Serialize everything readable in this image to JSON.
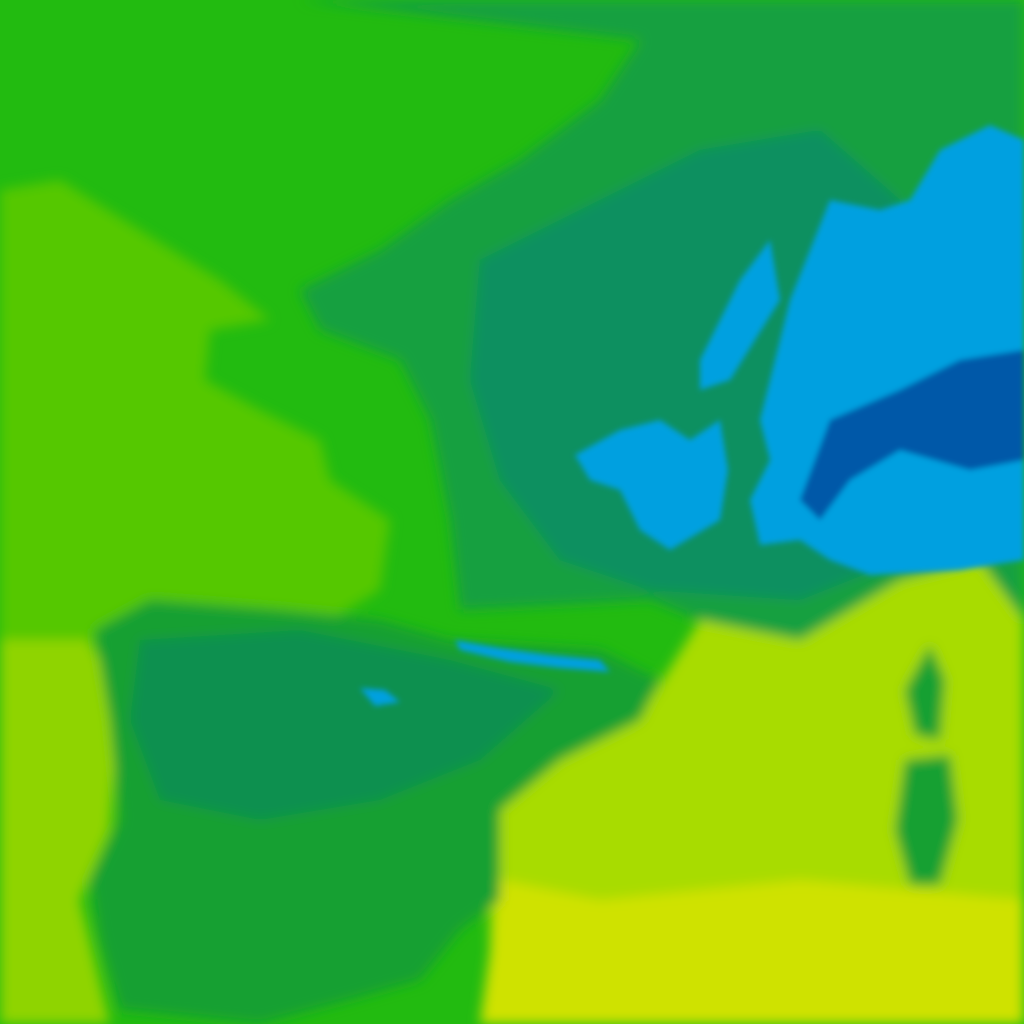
{
  "map": {
    "type": "field",
    "palette": {
      "land_low": "#22bb10",
      "atlantic": "#55c800",
      "atlantic_south": "#8fd400",
      "upland": "#12a040",
      "upland_high": "#0a9060",
      "mountain": "#00a0e0",
      "peak": "#0058a8",
      "mediterranean": "#a8dc00",
      "mediterranean_south": "#cfe200",
      "iberia": "#17a030",
      "iberia_high": "#0e9050"
    }
  }
}
